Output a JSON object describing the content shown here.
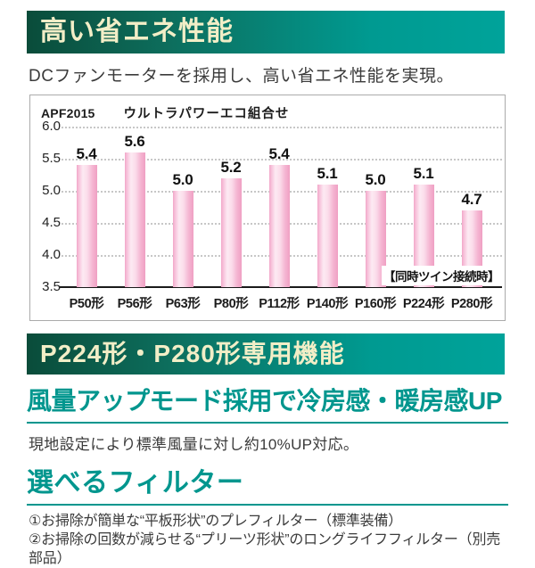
{
  "colors": {
    "accent": "#00968e",
    "banner_left": "#0a4c3a",
    "banner_right": "#00a39a",
    "banner_text": "#f2eec7",
    "bar_edge": "#ef9fc3",
    "bar_highlight": "#fdeaf3",
    "grid": "#c7c7c7"
  },
  "section1": {
    "banner": "高い省エネ性能",
    "description": "DCファンモーターを採用し、高い省エネ性能を実現。"
  },
  "chart_data": {
    "type": "bar",
    "title": "APF2015",
    "subtitle": "ウルトラパワーエコ組合せ",
    "categories": [
      "P50形",
      "P56形",
      "P63形",
      "P80形",
      "P112形",
      "P140形",
      "P160形",
      "P224形",
      "P280形"
    ],
    "values": [
      5.4,
      5.6,
      5.0,
      5.2,
      5.4,
      5.1,
      5.0,
      5.1,
      4.7
    ],
    "ylim": [
      3.5,
      6.0
    ],
    "yticks": [
      6.0,
      5.5,
      5.0,
      4.5,
      4.0,
      3.5
    ],
    "grid": true,
    "legend": null,
    "annotation": "【同時ツイン接続時】",
    "xlabel": "",
    "ylabel": "APF2015"
  },
  "section2": {
    "banner": "P224形・P280形専用機能",
    "subtitle": "風量アップモード採用で冷房感・暖房感UP",
    "body": "現地設定により標準風量に対し約10%UP対応。",
    "heading": "選べるフィルター",
    "list": [
      "①お掃除が簡単な“平板形状”のプレフィルター（標準装備）",
      "②お掃除の回数が減らせる“プリーツ形状”のロングライフフィルター（別売部品）"
    ]
  }
}
